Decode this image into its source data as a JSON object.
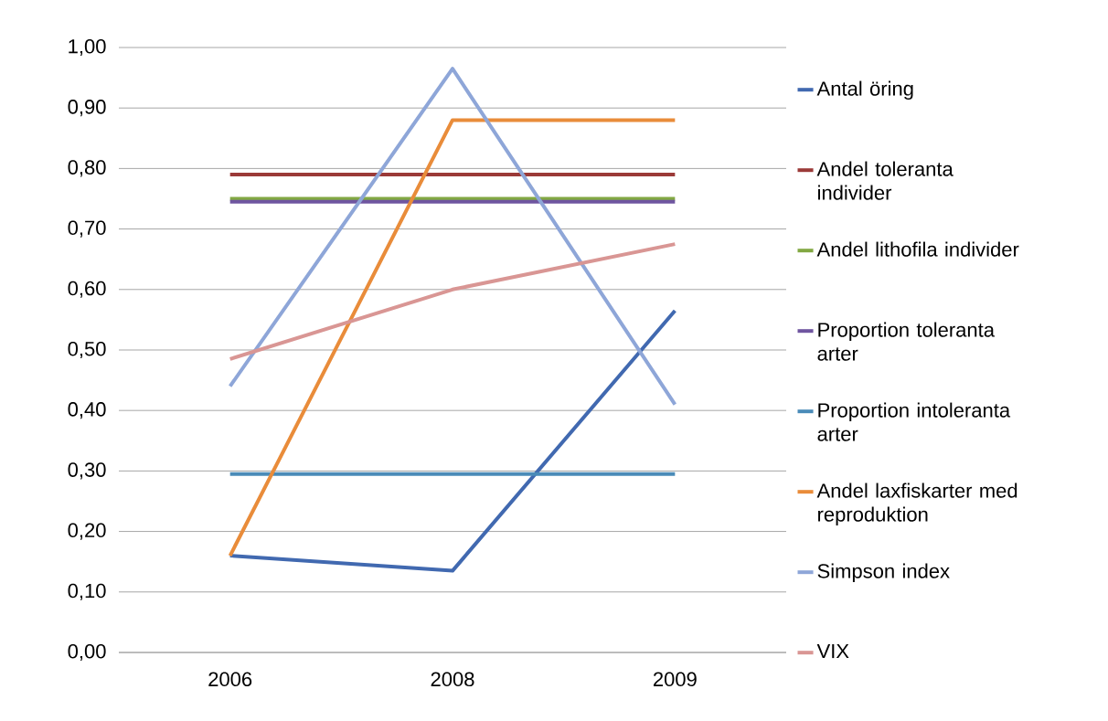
{
  "chart_data": {
    "type": "line",
    "categories": [
      "2006",
      "2008",
      "2009"
    ],
    "series": [
      {
        "name": "Antal öring",
        "color": "#4169b0",
        "values": [
          0.16,
          0.135,
          0.565
        ]
      },
      {
        "name": "Andel toleranta individer",
        "color": "#9b3a38",
        "values": [
          0.79,
          0.79,
          0.79
        ]
      },
      {
        "name": "Andel lithofila individer",
        "color": "#82a843",
        "values": [
          0.75,
          0.75,
          0.75
        ]
      },
      {
        "name": "Proportion toleranta arter",
        "color": "#6f55a0",
        "values": [
          0.745,
          0.745,
          0.745
        ]
      },
      {
        "name": "Proportion intoleranta arter",
        "color": "#4a8bb8",
        "values": [
          0.295,
          0.295,
          0.295
        ]
      },
      {
        "name": "Andel laxfiskarter med reproduktion",
        "color": "#e98c3a",
        "values": [
          0.16,
          0.88,
          0.88
        ]
      },
      {
        "name": "Simpson index",
        "color": "#8ea6d8",
        "values": [
          0.44,
          0.965,
          0.41
        ]
      },
      {
        "name": "VIX",
        "color": "#d99694",
        "values": [
          0.485,
          0.6,
          0.675
        ]
      }
    ],
    "ylim": [
      0,
      1
    ],
    "yticks": [
      {
        "value": 0,
        "label": "0,00"
      },
      {
        "value": 0.1,
        "label": "0,10"
      },
      {
        "value": 0.2,
        "label": "0,20"
      },
      {
        "value": 0.3,
        "label": "0,30"
      },
      {
        "value": 0.4,
        "label": "0,40"
      },
      {
        "value": 0.5,
        "label": "0,50"
      },
      {
        "value": 0.6,
        "label": "0,60"
      },
      {
        "value": 0.7,
        "label": "0,70"
      },
      {
        "value": 0.8,
        "label": "0,80"
      },
      {
        "value": 0.9,
        "label": "0,90"
      },
      {
        "value": 1,
        "label": "1,00"
      }
    ],
    "grid": "y",
    "legend": "right",
    "marker": "none",
    "line_style": "solid"
  }
}
